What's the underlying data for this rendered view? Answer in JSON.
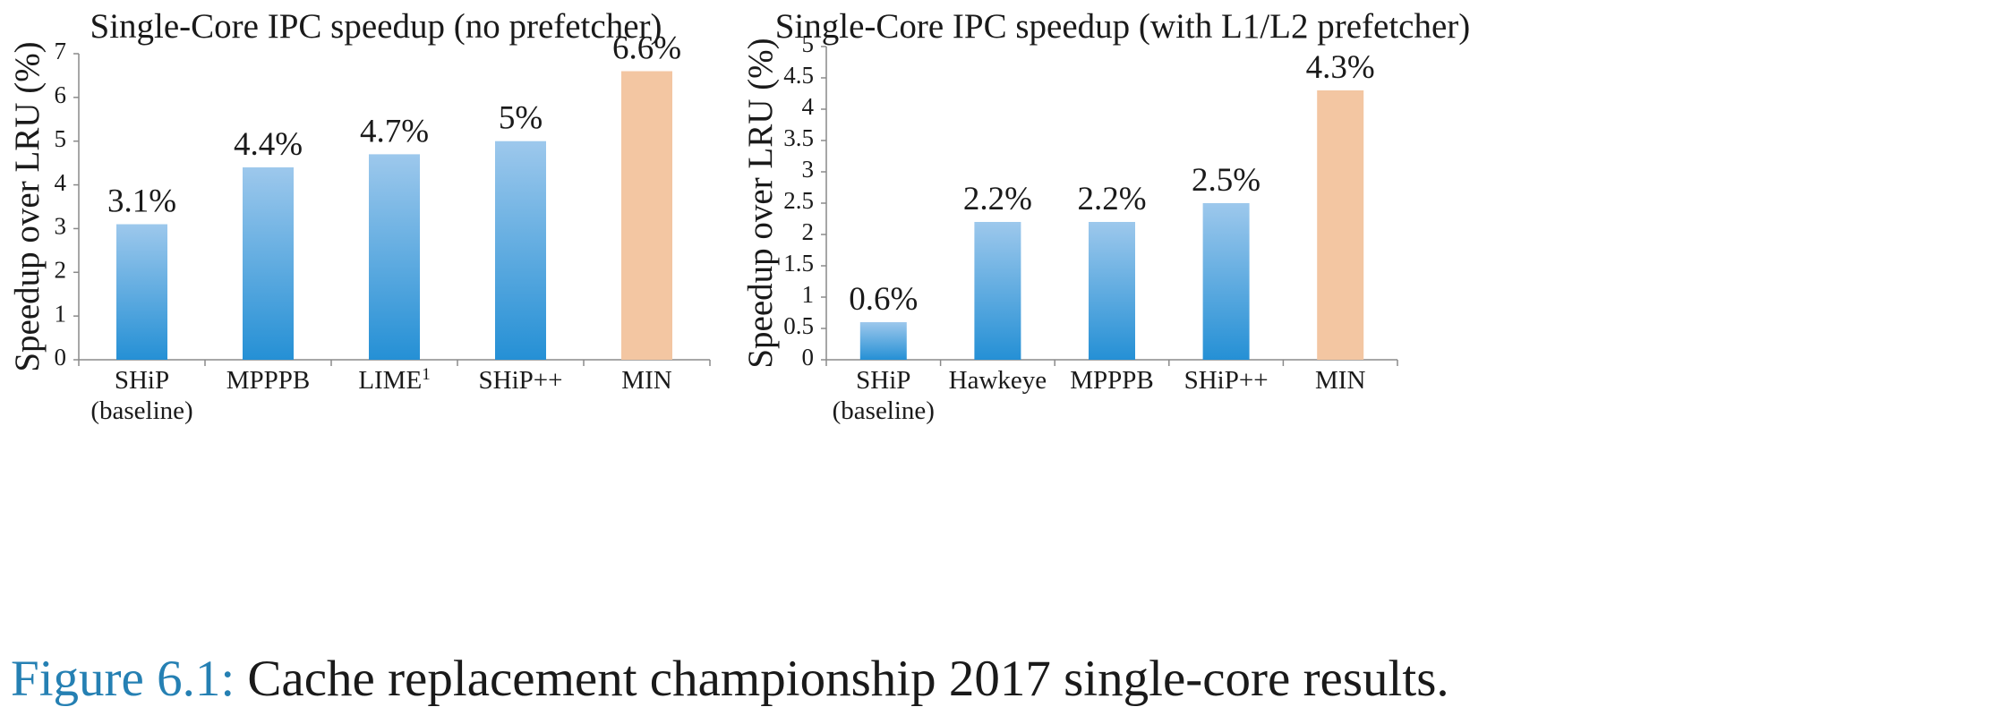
{
  "chart_data": [
    {
      "type": "bar",
      "title": "Single-Core IPC speedup (no prefetcher)",
      "ylabel": "Speedup over LRU (%)",
      "xlabel": "",
      "ylim": [
        0,
        7
      ],
      "yticks": [
        0,
        1,
        2,
        3,
        4,
        5,
        6,
        7
      ],
      "grid": false,
      "categories": [
        {
          "label": "SHiP",
          "sub": "(baseline)"
        },
        {
          "label": "MPPPB",
          "sub": ""
        },
        {
          "label": "LIME",
          "sup": "1",
          "sub": ""
        },
        {
          "label": "SHiP++",
          "sub": ""
        },
        {
          "label": "MIN",
          "sub": ""
        }
      ],
      "values": [
        3.1,
        4.4,
        4.7,
        5.0,
        6.6
      ],
      "value_labels": [
        "3.1%",
        "4.4%",
        "4.7%",
        "5%",
        "6.6%"
      ],
      "bar_colors": [
        "blue",
        "blue",
        "blue",
        "blue",
        "peach"
      ]
    },
    {
      "type": "bar",
      "title": "Single-Core IPC speedup (with L1/L2 prefetcher)",
      "ylabel": "Speedup over LRU (%)",
      "xlabel": "",
      "ylim": [
        0,
        5
      ],
      "yticks": [
        "0",
        "0.5",
        "1",
        "1.5",
        "2",
        "2.5",
        "3",
        "3.5",
        "4",
        "4.5",
        "5"
      ],
      "grid": false,
      "categories": [
        {
          "label": "SHiP",
          "sub": "(baseline)"
        },
        {
          "label": "Hawkeye",
          "sub": ""
        },
        {
          "label": "MPPPB",
          "sub": ""
        },
        {
          "label": "SHiP++",
          "sub": ""
        },
        {
          "label": "MIN",
          "sub": ""
        }
      ],
      "values": [
        0.6,
        2.2,
        2.2,
        2.5,
        4.3
      ],
      "value_labels": [
        "0.6%",
        "2.2%",
        "2.2%",
        "2.5%",
        "4.3%"
      ],
      "bar_colors": [
        "blue",
        "blue",
        "blue",
        "blue",
        "peach"
      ]
    }
  ],
  "colors": {
    "bar_blue_top": "#9dc8ec",
    "bar_blue_bottom": "#2590d5",
    "bar_peach": "#f3c6a2",
    "axis": "#8a8a8a",
    "caption_number": "#2580b3"
  },
  "caption": {
    "number": "Figure 6.1:",
    "text": "Cache replacement championship 2017 single-core results."
  }
}
